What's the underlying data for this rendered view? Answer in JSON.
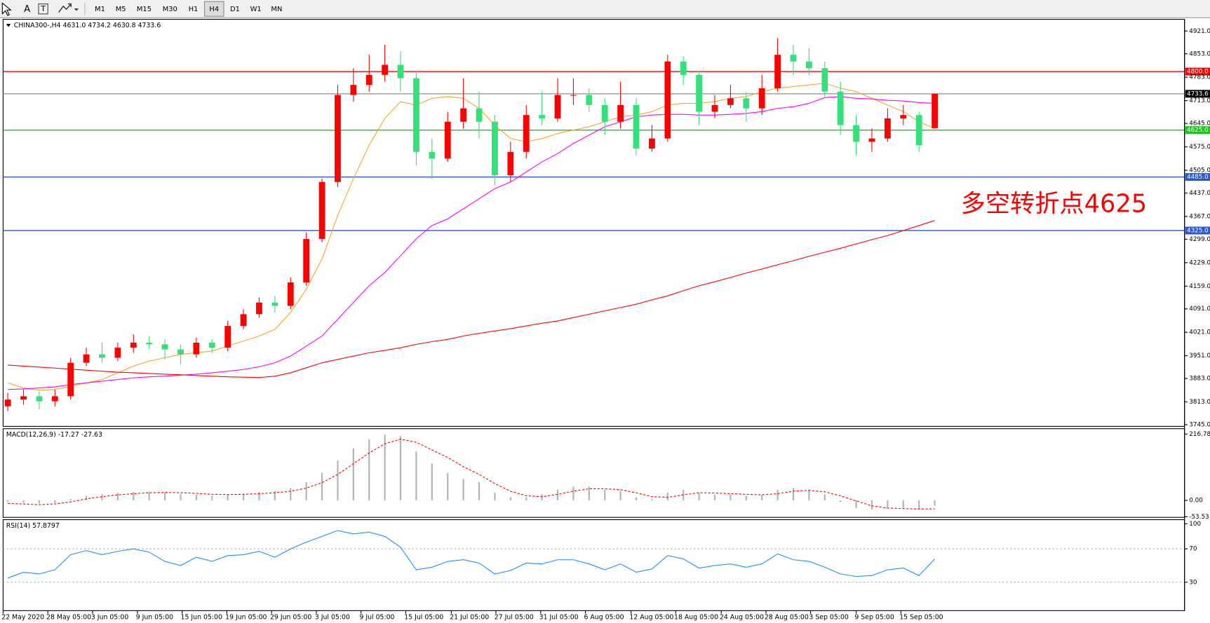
{
  "toolbar": {
    "tools": [
      "A",
      "T"
    ],
    "buttons": [
      "M1",
      "M5",
      "M15",
      "M30",
      "H1",
      "H4",
      "D1",
      "W1",
      "MN"
    ],
    "active": "H4"
  },
  "chart_data": [
    {
      "type": "candlestick",
      "title": "CHINA300-,H4  4631.0 4734.2 4630.8 4733.6",
      "open": [
        3800,
        3820,
        3830,
        3815,
        3830,
        3930,
        3955,
        3945,
        3975,
        3990,
        3985,
        3970,
        3955,
        3990,
        3975,
        4040,
        4075,
        4110,
        4100,
        4170,
        4300,
        4470,
        4730,
        4760,
        4790,
        4820,
        4780,
        4560,
        4540,
        4650,
        4690,
        4650,
        4490,
        4560,
        4670,
        4660,
        4730,
        4730,
        4700,
        4650,
        4700,
        4570,
        4600,
        4830,
        4790,
        4680,
        4700,
        4720,
        4690,
        4750,
        4850,
        4830,
        4810,
        4740,
        4640,
        4590,
        4600,
        4660,
        4670,
        4631.0
      ],
      "high": [
        3840,
        3850,
        3845,
        3850,
        3945,
        3975,
        3990,
        3990,
        4015,
        4010,
        4000,
        3985,
        4005,
        4000,
        4055,
        4090,
        4125,
        4130,
        4185,
        4320,
        4480,
        4760,
        4810,
        4850,
        4880,
        4860,
        4800,
        4600,
        4680,
        4780,
        4740,
        4670,
        4590,
        4700,
        4740,
        4780,
        4780,
        4750,
        4720,
        4770,
        4720,
        4640,
        4850,
        4845,
        4800,
        4730,
        4760,
        4740,
        4790,
        4900,
        4880,
        4870,
        4830,
        4770,
        4670,
        4630,
        4690,
        4700,
        4680,
        4734.2
      ],
      "low": [
        3785,
        3805,
        3790,
        3800,
        3820,
        3920,
        3930,
        3935,
        3960,
        3970,
        3940,
        3925,
        3945,
        3960,
        3965,
        4030,
        4065,
        4080,
        4090,
        4160,
        4290,
        4455,
        4710,
        4740,
        4770,
        4740,
        4520,
        4480,
        4530,
        4630,
        4600,
        4460,
        4470,
        4540,
        4640,
        4650,
        4700,
        4680,
        4610,
        4630,
        4550,
        4560,
        4590,
        4760,
        4640,
        4660,
        4690,
        4650,
        4670,
        4740,
        4790,
        4790,
        4720,
        4610,
        4550,
        4560,
        4590,
        4640,
        4560,
        4630.8
      ],
      "close": [
        3820,
        3830,
        3815,
        3830,
        3930,
        3955,
        3945,
        3975,
        3990,
        3985,
        3970,
        3955,
        3990,
        3975,
        4040,
        4075,
        4110,
        4100,
        4170,
        4300,
        4470,
        4730,
        4760,
        4790,
        4820,
        4780,
        4560,
        4540,
        4650,
        4690,
        4650,
        4490,
        4560,
        4670,
        4660,
        4730,
        4730,
        4700,
        4650,
        4700,
        4570,
        4600,
        4830,
        4790,
        4680,
        4700,
        4720,
        4690,
        4750,
        4850,
        4830,
        4810,
        4740,
        4640,
        4590,
        4600,
        4660,
        4670,
        4580,
        4733.6
      ],
      "up_color": "#ff0000",
      "down_color": "#33e07a",
      "series": [
        {
          "color": "#f5a623",
          "values": [
            3870,
            3855,
            3848,
            3850,
            3860,
            3870,
            3880,
            3900,
            3920,
            3935,
            3945,
            3955,
            3960,
            3965,
            3980,
            3995,
            4010,
            4030,
            4080,
            4150,
            4240,
            4370,
            4480,
            4580,
            4660,
            4710,
            4700,
            4720,
            4725,
            4720,
            4690,
            4640,
            4600,
            4590,
            4600,
            4615,
            4625,
            4635,
            4650,
            4665,
            4670,
            4680,
            4700,
            4705,
            4705,
            4710,
            4720,
            4725,
            4740,
            4750,
            4755,
            4760,
            4765,
            4750,
            4740,
            4720,
            4700,
            4680,
            4650,
            4630
          ]
        },
        {
          "color": "#ff00ff",
          "values": [
            3850,
            3852,
            3855,
            3858,
            3865,
            3870,
            3875,
            3880,
            3885,
            3888,
            3890,
            3893,
            3896,
            3900,
            3905,
            3910,
            3918,
            3930,
            3950,
            3980,
            4010,
            4060,
            4110,
            4160,
            4200,
            4250,
            4300,
            4340,
            4360,
            4390,
            4420,
            4450,
            4470,
            4500,
            4530,
            4555,
            4585,
            4610,
            4635,
            4650,
            4665,
            4670,
            4672,
            4672,
            4670,
            4670,
            4672,
            4675,
            4680,
            4690,
            4695,
            4705,
            4722,
            4725,
            4720,
            4718,
            4714,
            4712,
            4707,
            4705
          ]
        },
        {
          "color": "#ff0000",
          "values": [
            3923,
            3920,
            3917,
            3914,
            3911,
            3908,
            3905,
            3902,
            3900,
            3898,
            3896,
            3894,
            3892,
            3890,
            3888,
            3887,
            3886,
            3890,
            3900,
            3915,
            3930,
            3940,
            3950,
            3960,
            3967,
            3975,
            3985,
            3993,
            4000,
            4010,
            4018,
            4025,
            4032,
            4040,
            4048,
            4055,
            4065,
            4075,
            4085,
            4095,
            4105,
            4118,
            4130,
            4145,
            4160,
            4172,
            4185,
            4198,
            4210,
            4223,
            4235,
            4248,
            4260,
            4272,
            4285,
            4298,
            4310,
            4325,
            4340,
            4355
          ]
        }
      ],
      "levels": [
        {
          "value": 4800,
          "label": "4800.0",
          "color": "#ff0000"
        },
        {
          "value": 4733.6,
          "label": "4733.6",
          "color": "#9a9a9a"
        },
        {
          "value": 4625,
          "label": "4625.0",
          "color": "#1fc21f"
        },
        {
          "value": 4485,
          "label": "4485.0",
          "color": "#2a56d0"
        },
        {
          "value": 4325,
          "label": "4325.0",
          "color": "#2a56d0"
        }
      ],
      "annotation": {
        "text": "多空转折点4625",
        "color": "#ff0000"
      },
      "ylim": [
        3740,
        4956
      ],
      "yticks": [
        {
          "value": 4921,
          "label": "4921.0"
        },
        {
          "value": 4853,
          "label": "4853.0"
        },
        {
          "value": 4783,
          "label": "4783.0"
        },
        {
          "value": 4713,
          "label": "4713.0"
        },
        {
          "value": 4645,
          "label": "4645.0"
        },
        {
          "value": 4575,
          "label": "4575.0"
        },
        {
          "value": 4505,
          "label": "4505.0"
        },
        {
          "value": 4437,
          "label": "4437.0"
        },
        {
          "value": 4367,
          "label": "4367.0"
        },
        {
          "value": 4299,
          "label": "4299.0"
        },
        {
          "value": 4229,
          "label": "4229.0"
        },
        {
          "value": 4159,
          "label": "4159.0"
        },
        {
          "value": 4091,
          "label": "4091.0"
        },
        {
          "value": 4021,
          "label": "4021.0"
        },
        {
          "value": 3951,
          "label": "3951.0"
        },
        {
          "value": 3883,
          "label": "3883.0"
        },
        {
          "value": 3813,
          "label": "3813.0"
        },
        {
          "value": 3745,
          "label": "3745.0"
        }
      ],
      "xlim": [
        -0.3,
        74.9
      ],
      "xticks": [
        {
          "value": -0.39,
          "label": "22 May 2020"
        },
        {
          "value": 2.55,
          "label": "28 May 05:00"
        },
        {
          "value": 5.4,
          "label": "3 Jun 05:00"
        },
        {
          "value": 8.25,
          "label": "9 Jun 05:00"
        },
        {
          "value": 11.1,
          "label": "15 Jun 05:00"
        },
        {
          "value": 13.94,
          "label": "19 Jun 05:00"
        },
        {
          "value": 16.79,
          "label": "29 Jun 05:00"
        },
        {
          "value": 19.64,
          "label": "3 Jul 05:00"
        },
        {
          "value": 22.48,
          "label": "9 Jul 05:00"
        },
        {
          "value": 25.33,
          "label": "15 Jul 05:00"
        },
        {
          "value": 28.23,
          "label": "21 Jul 05:00"
        },
        {
          "value": 31.07,
          "label": "27 Jul 05:00"
        },
        {
          "value": 33.92,
          "label": "31 Jul 05:00"
        },
        {
          "value": 36.77,
          "label": "6 Aug 05:00"
        },
        {
          "value": 39.67,
          "label": "12 Aug 05:00"
        },
        {
          "value": 42.51,
          "label": "18 Aug 05:00"
        },
        {
          "value": 45.41,
          "label": "24 Aug 05:00"
        },
        {
          "value": 48.26,
          "label": "28 Aug 05:00"
        },
        {
          "value": 51.1,
          "label": "3 Sep 05:00"
        },
        {
          "value": 54.0,
          "label": "9 Sep 05:00"
        },
        {
          "value": 56.85,
          "label": "15 Sep 05:00"
        }
      ]
    },
    {
      "type": "macd",
      "title": "MACD(12,26,9) -17.27 -27.63",
      "histogram": [
        -5,
        -8,
        -10,
        -8,
        5,
        15,
        20,
        25,
        28,
        28,
        25,
        20,
        18,
        15,
        18,
        22,
        28,
        30,
        40,
        60,
        90,
        130,
        170,
        200,
        215,
        210,
        160,
        120,
        90,
        70,
        60,
        25,
        10,
        10,
        20,
        35,
        45,
        45,
        35,
        30,
        10,
        5,
        25,
        35,
        25,
        18,
        20,
        15,
        18,
        35,
        40,
        35,
        20,
        -5,
        -25,
        -30,
        -25,
        -25,
        -30,
        -17.27
      ],
      "signal": [
        -10,
        -12,
        -14,
        -12,
        -5,
        5,
        12,
        18,
        22,
        25,
        26,
        25,
        23,
        20,
        19,
        20,
        22,
        25,
        30,
        40,
        58,
        85,
        120,
        155,
        185,
        200,
        190,
        165,
        140,
        110,
        85,
        55,
        30,
        15,
        12,
        20,
        30,
        38,
        38,
        35,
        25,
        12,
        10,
        18,
        25,
        24,
        22,
        20,
        18,
        22,
        30,
        33,
        28,
        15,
        -2,
        -18,
        -25,
        -27,
        -28,
        -27.63
      ],
      "hist_color": "#b4b4b4",
      "signal_color": "#ff0000",
      "ylim": [
        -55.5,
        234.4
      ],
      "yticks": [
        216.78,
        {
          "value": 0,
          "label": "0.00"
        },
        -53.53
      ],
      "xlim": [
        -0.3,
        74.9
      ]
    },
    {
      "type": "rsi",
      "title": "RSI(14) 57.8797",
      "values": [
        35,
        42,
        40,
        45,
        63,
        68,
        63,
        67,
        70,
        66,
        55,
        50,
        60,
        55,
        62,
        63,
        67,
        60,
        70,
        78,
        85,
        92,
        88,
        90,
        85,
        72,
        45,
        48,
        55,
        57,
        53,
        40,
        44,
        53,
        52,
        57,
        57,
        52,
        45,
        52,
        42,
        46,
        62,
        58,
        47,
        50,
        52,
        48,
        52,
        64,
        57,
        55,
        48,
        40,
        37,
        38,
        45,
        47,
        38,
        57.8797
      ],
      "color": "#1e90ff",
      "levels": [
        70,
        30
      ],
      "ylim": [
        -4,
        105
      ],
      "yticks": [
        100,
        70,
        30
      ],
      "xlim": [
        -0.3,
        74.9
      ]
    }
  ]
}
